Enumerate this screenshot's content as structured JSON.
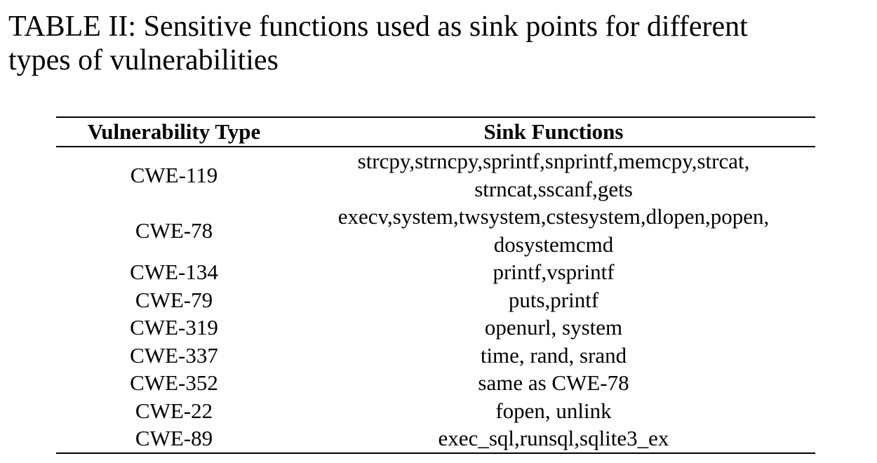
{
  "caption": {
    "line1": "TABLE II: Sensitive functions used as sink points for different",
    "line2": "types of vulnerabilities"
  },
  "table": {
    "headers": [
      "Vulnerability Type",
      "Sink Functions"
    ],
    "rows": [
      {
        "type": "CWE-119",
        "sink": [
          "strcpy,strncpy,sprintf,snprintf,memcpy,strcat,",
          "strncat,sscanf,gets"
        ]
      },
      {
        "type": "CWE-78",
        "sink": [
          "execv,system,twsystem,cstesystem,dlopen,popen,",
          "dosystemcmd"
        ]
      },
      {
        "type": "CWE-134",
        "sink": [
          "printf,vsprintf"
        ]
      },
      {
        "type": "CWE-79",
        "sink": [
          "puts,printf"
        ]
      },
      {
        "type": "CWE-319",
        "sink": [
          "openurl, system"
        ]
      },
      {
        "type": "CWE-337",
        "sink": [
          "time, rand, srand"
        ]
      },
      {
        "type": "CWE-352",
        "sink": [
          "same as CWE-78"
        ]
      },
      {
        "type": "CWE-22",
        "sink": [
          "fopen, unlink"
        ]
      },
      {
        "type": "CWE-89",
        "sink": [
          "exec_sql,runsql,sqlite3_ex"
        ]
      }
    ]
  }
}
